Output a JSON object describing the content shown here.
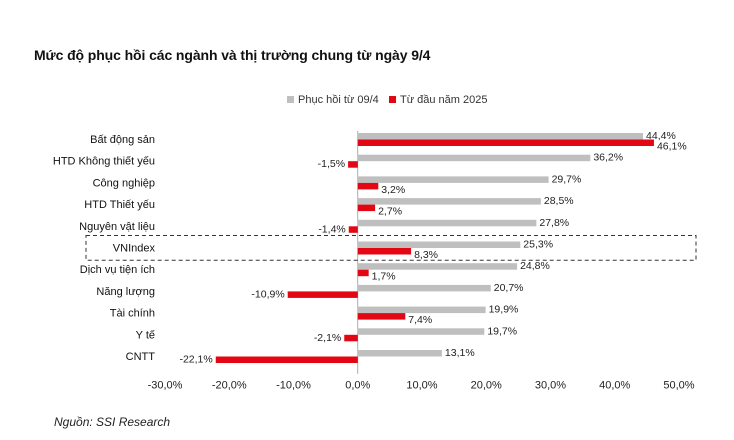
{
  "title": "Mức độ phục hồi các ngành và thị trường chung từ ngày 9/4",
  "source": "Nguồn: SSI Research",
  "colors": {
    "series1": "#bfbfbf",
    "series2": "#e30613",
    "highlight_border": "#333333"
  },
  "chart_data": {
    "type": "bar",
    "orientation": "horizontal",
    "categories": [
      "Bất động sản",
      "HTD Không thiết yếu",
      "Công nghiệp",
      "HTD Thiết yếu",
      "Nguyên vật liệu",
      "VNIndex",
      "Dịch vụ tiện ích",
      "Năng lượng",
      "Tài chính",
      "Y tế",
      "CNTT"
    ],
    "series": [
      {
        "name": "Phục hồi từ 09/4",
        "values": [
          44.4,
          36.2,
          29.7,
          28.5,
          27.8,
          25.3,
          24.8,
          20.7,
          19.9,
          19.7,
          13.1
        ],
        "labels": [
          "44,4%",
          "36,2%",
          "29,7%",
          "28,5%",
          "27,8%",
          "25,3%",
          "24,8%",
          "20,7%",
          "19,9%",
          "19,7%",
          "13,1%"
        ]
      },
      {
        "name": "Từ đầu năm 2025",
        "values": [
          46.1,
          -1.5,
          3.2,
          2.7,
          -1.4,
          8.3,
          1.7,
          -10.9,
          7.4,
          -2.1,
          -22.1
        ],
        "labels": [
          "46,1%",
          "-1,5%",
          "3,2%",
          "2,7%",
          "-1,4%",
          "8,3%",
          "1,7%",
          "-10,9%",
          "7,4%",
          "-2,1%",
          "-22,1%"
        ]
      }
    ],
    "highlight_category": "VNIndex",
    "xlim": [
      -30,
      50
    ],
    "xticks": [
      -30,
      -20,
      -10,
      0,
      10,
      20,
      30,
      40,
      50
    ],
    "xtick_labels": [
      "-30,0%",
      "-20,0%",
      "-10,0%",
      "0,0%",
      "10,0%",
      "20,0%",
      "30,0%",
      "40,0%",
      "50,0%"
    ],
    "legend_position": "top",
    "grid": false
  }
}
